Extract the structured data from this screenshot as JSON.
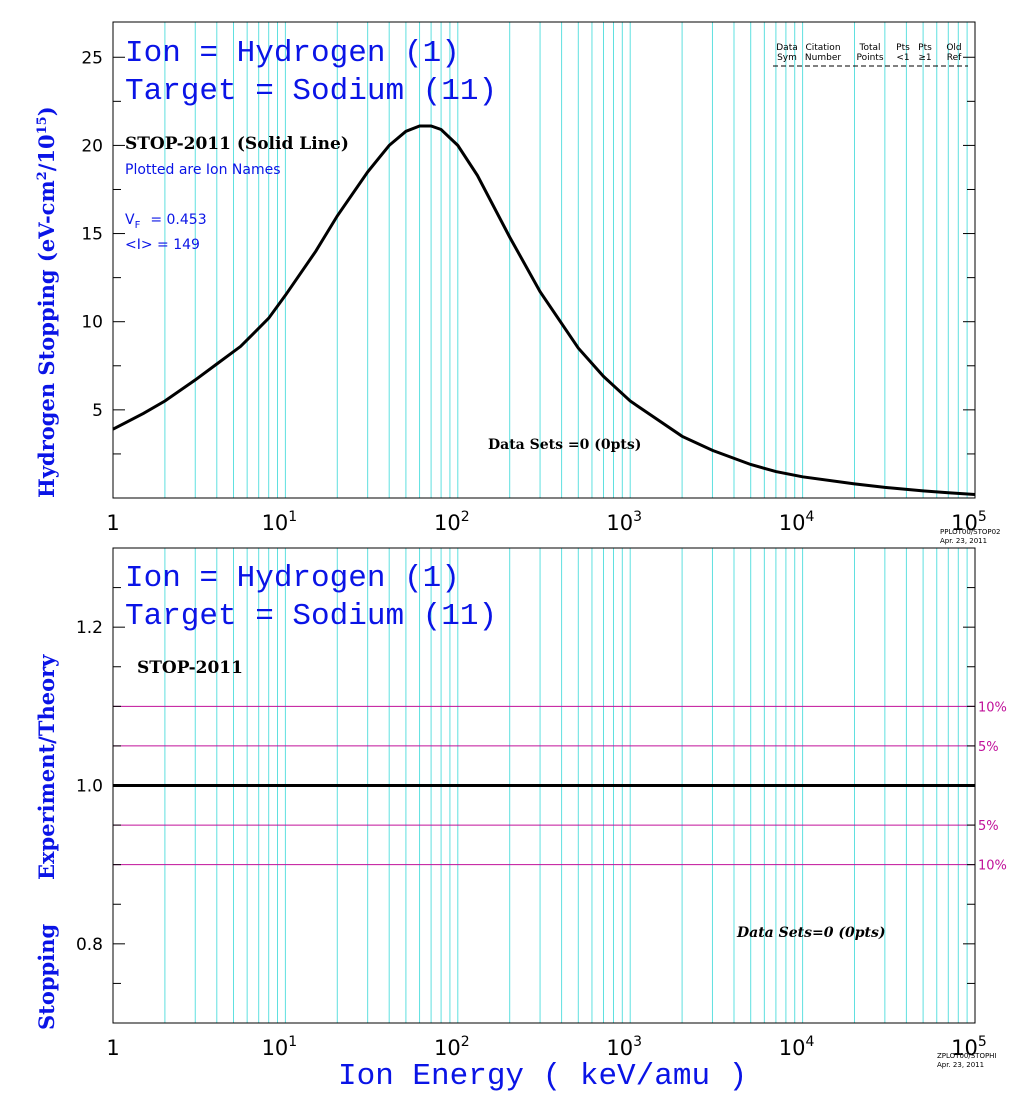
{
  "colors": {
    "blue": "#0a14e6",
    "grid": "#5fe0e0",
    "ref": "#c0109a",
    "black": "#000000"
  },
  "x_tick_labels": [
    "1",
    "10",
    "1",
    "10",
    "2",
    "10",
    "3",
    "10",
    "4",
    "10",
    "5"
  ],
  "x_tick_display": [
    {
      "base": "1",
      "exp": ""
    },
    {
      "base": "10",
      "exp": "1"
    },
    {
      "base": "10",
      "exp": "2"
    },
    {
      "base": "10",
      "exp": "3"
    },
    {
      "base": "10",
      "exp": "4"
    },
    {
      "base": "10",
      "exp": "5"
    }
  ],
  "x_label": "Ion  Energy  ( keV/amu )",
  "top": {
    "title_ion": "Ion = Hydrogen (1)",
    "title_target": "Target = Sodium (11)",
    "ylabel_main": "Hydrogen Stopping (eV-cm",
    "ylabel_sup1": "2",
    "ylabel_mid": "/10",
    "ylabel_sup2": "15",
    "ylabel_end": ")",
    "curve_label": "STOP-2011 (Solid Line)",
    "plotted_note": "Plotted are Ion Names",
    "vf_label": "V",
    "vf_sub": "F",
    "vf_value": "= 0.453",
    "i_label": "<I> = 149",
    "data_sets": "Data Sets =0 (0pts)",
    "legend_headers": [
      {
        "l1": "Data",
        "l2": "Sym"
      },
      {
        "l1": "Citation",
        "l2": "Number"
      },
      {
        "l1": "Total",
        "l2": "Points"
      },
      {
        "l1": "Pts",
        "l2": "<1"
      },
      {
        "l1": "Pts",
        "l2": "≥1"
      },
      {
        "l1": "Old",
        "l2": "Ref"
      }
    ],
    "stamp_1": "PPLOT00/STOP02",
    "stamp_2": "Apr. 23, 2011",
    "y_ticks": [
      "5",
      "10",
      "15",
      "20",
      "25"
    ]
  },
  "bottom": {
    "title_ion": "Ion = Hydrogen (1)",
    "title_target": "Target = Sodium (11)",
    "ylabel_1": "Stopping",
    "ylabel_2": "Experiment/Theory",
    "curve_label": "STOP-2011",
    "data_sets": "Data Sets=0 (0pts)",
    "ref_labels": [
      "10%",
      "5%",
      "5%",
      "10%"
    ],
    "stamp_1": "ZPLOT00/STOPHI",
    "stamp_2": "Apr. 23, 2011",
    "y_ticks": [
      "0.8",
      "1.0",
      "1.2"
    ]
  },
  "chart_data": [
    {
      "type": "line",
      "title": "Ion = Hydrogen (1) Target = Sodium (11)",
      "xlabel": "Ion  Energy  ( keV/amu )",
      "ylabel": "Hydrogen Stopping (eV-cm2/1015)",
      "x_scale": "log",
      "xlim": [
        1,
        100000
      ],
      "ylim": [
        0,
        27
      ],
      "grid": true,
      "series": [
        {
          "name": "STOP-2011 (Solid Line)",
          "x": [
            1,
            1.5,
            2,
            3,
            4,
            5.5,
            8,
            10,
            15,
            20,
            30,
            40,
            50,
            60,
            70,
            80,
            100,
            130,
            200,
            300,
            500,
            700,
            1000,
            2000,
            3000,
            5000,
            7000,
            10000,
            20000,
            30000,
            50000,
            70000,
            100000
          ],
          "y": [
            3.9,
            4.8,
            5.5,
            6.7,
            7.6,
            8.6,
            10.2,
            11.5,
            14.0,
            16.0,
            18.5,
            20.0,
            20.8,
            21.1,
            21.1,
            20.9,
            20.0,
            18.3,
            14.8,
            11.7,
            8.5,
            6.9,
            5.5,
            3.5,
            2.7,
            1.9,
            1.5,
            1.2,
            0.8,
            0.6,
            0.4,
            0.3,
            0.2
          ]
        }
      ]
    },
    {
      "type": "line",
      "title": "Ion = Hydrogen (1) Target = Sodium (11)",
      "xlabel": "Ion  Energy  ( keV/amu )",
      "ylabel": "Stopping  Experiment/Theory",
      "x_scale": "log",
      "xlim": [
        1,
        100000
      ],
      "ylim": [
        0.7,
        1.3
      ],
      "grid": true,
      "series": [
        {
          "name": "STOP-2011",
          "x": [
            1,
            100000
          ],
          "y": [
            1.0,
            1.0
          ]
        },
        {
          "name": "10%",
          "x": [
            1,
            100000
          ],
          "y": [
            1.1,
            1.1
          ]
        },
        {
          "name": "5%",
          "x": [
            1,
            100000
          ],
          "y": [
            1.05,
            1.05
          ]
        },
        {
          "name": "5%",
          "x": [
            1,
            100000
          ],
          "y": [
            0.95,
            0.95
          ]
        },
        {
          "name": "10%",
          "x": [
            1,
            100000
          ],
          "y": [
            0.9,
            0.9
          ]
        }
      ]
    }
  ]
}
